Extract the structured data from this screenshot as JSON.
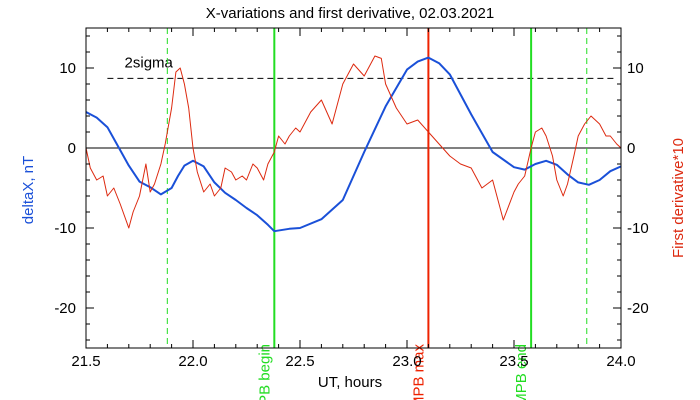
{
  "chart_data": {
    "type": "line",
    "title": "X-variations and first derivative, 02.03.2021",
    "xlabel": "UT, hours",
    "ylabel_left": "deltaX, nT",
    "ylabel_right": "First derivative*10",
    "xlim": [
      21.5,
      24.0
    ],
    "ylim": [
      -25,
      15
    ],
    "x_ticks": [
      "21.5",
      "22.0",
      "22.5",
      "23.0",
      "23.5",
      "24.0"
    ],
    "y_ticks": [
      "-20",
      "-10",
      "0",
      "10"
    ],
    "grid": false,
    "colors": {
      "deltaX": "#1a50d8",
      "derivative": "#dd2a10",
      "mpb_boundary": "#22dd22",
      "mpb_max": "#ee2200",
      "threshold": "#000000"
    },
    "threshold": {
      "label": "2sigma",
      "value": 8.7
    },
    "zero_line": 0,
    "markers": [
      {
        "label": "MPB begin",
        "x": 22.38,
        "style": "solid",
        "color": "#22dd22"
      },
      {
        "label": "MPB max",
        "x": 23.1,
        "style": "solid",
        "color": "#ee2200"
      },
      {
        "label": "MPB end",
        "x": 23.58,
        "style": "solid",
        "color": "#22dd22"
      },
      {
        "label": "",
        "x": 21.88,
        "style": "dashed",
        "color": "#22dd22"
      },
      {
        "label": "",
        "x": 23.84,
        "style": "dashed",
        "color": "#22dd22"
      }
    ],
    "series": [
      {
        "color": "#1a50d8",
        "width": 2,
        "x": [
          21.5,
          21.55,
          21.6,
          21.65,
          21.7,
          21.75,
          21.8,
          21.85,
          21.9,
          21.93,
          21.96,
          22.0,
          22.05,
          22.1,
          22.15,
          22.2,
          22.25,
          22.3,
          22.35,
          22.38,
          22.45,
          22.5,
          22.6,
          22.7,
          22.8,
          22.9,
          23.0,
          23.05,
          23.1,
          23.15,
          23.2,
          23.3,
          23.4,
          23.5,
          23.55,
          23.6,
          23.65,
          23.7,
          23.75,
          23.8,
          23.85,
          23.9,
          23.95,
          24.0
        ],
        "values": [
          4.5,
          3.8,
          2.6,
          0.2,
          -2.2,
          -4.2,
          -4.9,
          -5.8,
          -5.0,
          -3.5,
          -2.2,
          -1.6,
          -2.3,
          -4.3,
          -5.6,
          -6.5,
          -7.5,
          -8.4,
          -9.6,
          -10.4,
          -10.1,
          -10.0,
          -8.9,
          -6.5,
          -0.5,
          5.2,
          9.8,
          10.8,
          11.3,
          10.6,
          9.2,
          4.2,
          -0.5,
          -2.4,
          -2.7,
          -2.0,
          -1.6,
          -2.1,
          -3.3,
          -4.3,
          -4.6,
          -4.0,
          -2.9,
          -2.3
        ]
      },
      {
        "color": "#dd2a10",
        "width": 1,
        "x": [
          21.5,
          21.52,
          21.55,
          21.58,
          21.6,
          21.63,
          21.66,
          21.7,
          21.72,
          21.75,
          21.78,
          21.8,
          21.82,
          21.85,
          21.87,
          21.9,
          21.92,
          21.94,
          21.96,
          21.98,
          22.0,
          22.02,
          22.05,
          22.08,
          22.1,
          22.13,
          22.15,
          22.18,
          22.2,
          22.23,
          22.25,
          22.28,
          22.3,
          22.33,
          22.35,
          22.38,
          22.4,
          22.43,
          22.45,
          22.48,
          22.5,
          22.55,
          22.6,
          22.65,
          22.7,
          22.75,
          22.8,
          22.85,
          22.88,
          22.9,
          22.95,
          23.0,
          23.05,
          23.1,
          23.15,
          23.2,
          23.25,
          23.3,
          23.35,
          23.4,
          23.45,
          23.5,
          23.52,
          23.55,
          23.58,
          23.6,
          23.63,
          23.65,
          23.68,
          23.7,
          23.73,
          23.75,
          23.78,
          23.8,
          23.83,
          23.86,
          23.88,
          23.9,
          23.93,
          23.95,
          23.98,
          24.0
        ],
        "values": [
          0.0,
          -2.5,
          -4.0,
          -3.5,
          -6.0,
          -5.0,
          -7.0,
          -10.0,
          -8.0,
          -6.0,
          -2.0,
          -5.5,
          -4.5,
          -2.0,
          0.5,
          5.0,
          9.5,
          10.0,
          8.0,
          5.0,
          0.0,
          -3.0,
          -5.5,
          -4.5,
          -6.0,
          -5.0,
          -2.5,
          -3.0,
          -4.0,
          -3.5,
          -4.0,
          -2.0,
          -2.5,
          -4.0,
          -2.0,
          -0.5,
          1.5,
          0.5,
          1.5,
          2.5,
          2.0,
          4.5,
          6.0,
          3.0,
          8.0,
          10.5,
          9.0,
          11.5,
          11.2,
          8.0,
          5.0,
          3.0,
          3.5,
          2.0,
          0.5,
          -1.0,
          -2.0,
          -2.5,
          -5.0,
          -4.0,
          -9.0,
          -5.5,
          -4.5,
          -3.5,
          0.0,
          2.0,
          2.5,
          1.5,
          -1.0,
          -4.0,
          -6.0,
          -4.5,
          -1.0,
          1.5,
          3.0,
          4.0,
          3.5,
          3.0,
          1.5,
          1.5,
          0.5,
          0.0
        ]
      }
    ]
  }
}
